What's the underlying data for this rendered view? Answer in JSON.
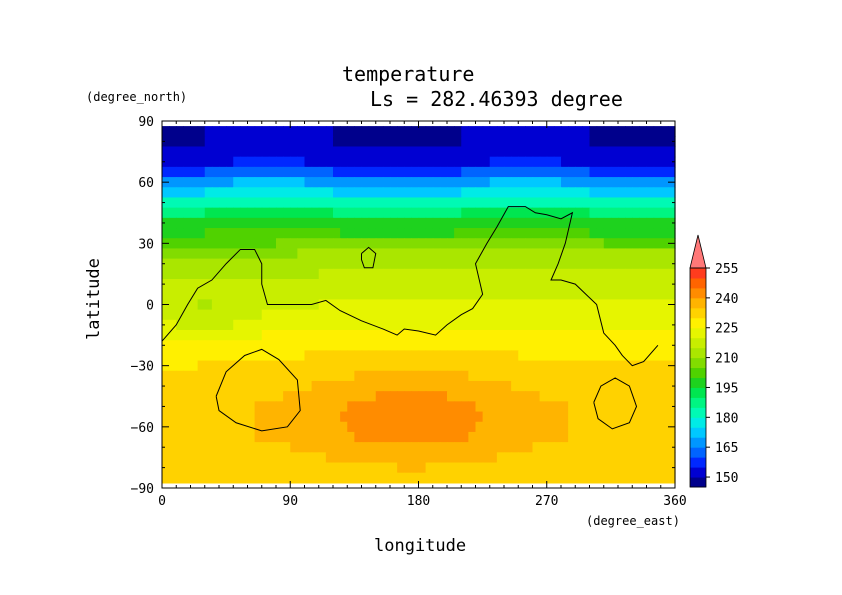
{
  "chart_data": {
    "type": "heatmap",
    "title": "temperature",
    "subtitle": "Ls = 282.46393 degree",
    "xlabel": "longitude",
    "ylabel": "latitude",
    "x_unit": "(degree_east)",
    "y_unit": "(degree_north)",
    "xlim": [
      0,
      360
    ],
    "ylim": [
      -90,
      90
    ],
    "x_ticks": [
      "0",
      "90",
      "180",
      "270",
      "360"
    ],
    "y_ticks": [
      "90",
      "60",
      "30",
      "0",
      "−30",
      "−60",
      "−90"
    ],
    "colorbar_labels": [
      "255",
      "240",
      "225",
      "210",
      "195",
      "180",
      "165",
      "150"
    ],
    "colorbar_levels": [
      145,
      150,
      155,
      160,
      165,
      170,
      175,
      180,
      185,
      190,
      195,
      200,
      205,
      210,
      215,
      220,
      225,
      230,
      235,
      240,
      245,
      250,
      255,
      260
    ],
    "colorbar_colors": [
      "#00008c",
      "#0000d2",
      "#0028ff",
      "#0064ff",
      "#0096ff",
      "#00c8ff",
      "#00ebe6",
      "#00fab4",
      "#00f582",
      "#00e650",
      "#1ed21e",
      "#50d200",
      "#82dc00",
      "#aae600",
      "#c8ee00",
      "#e6f500",
      "#fff000",
      "#ffd200",
      "#ffb400",
      "#ff8c00",
      "#ff6400",
      "#ff3c1e",
      "#ff5050",
      "#ff7878"
    ],
    "data": {
      "lat": [
        85,
        80,
        75,
        70,
        65,
        60,
        55,
        50,
        45,
        40,
        35,
        30,
        25,
        20,
        15,
        10,
        5,
        0,
        -5,
        -10,
        -15,
        -20,
        -25,
        -30,
        -35,
        -40,
        -45,
        -50,
        -55,
        -60,
        -65,
        -70,
        -75,
        -80,
        -85
      ],
      "lon_step": 5,
      "zonal_mean": [
        150,
        150,
        152,
        154,
        160,
        168,
        175,
        183,
        190,
        196,
        200,
        205,
        210,
        213,
        215,
        217,
        219,
        220,
        222,
        224,
        226,
        228,
        229,
        230,
        231,
        232,
        233,
        234,
        234,
        234,
        234,
        233,
        232,
        231,
        230
      ],
      "warm_anomaly": {
        "center_lon": 175,
        "center_lat": -55,
        "lon_width": 75,
        "lat_width": 28,
        "amplitude": 10
      }
    }
  },
  "coastline_note": ""
}
